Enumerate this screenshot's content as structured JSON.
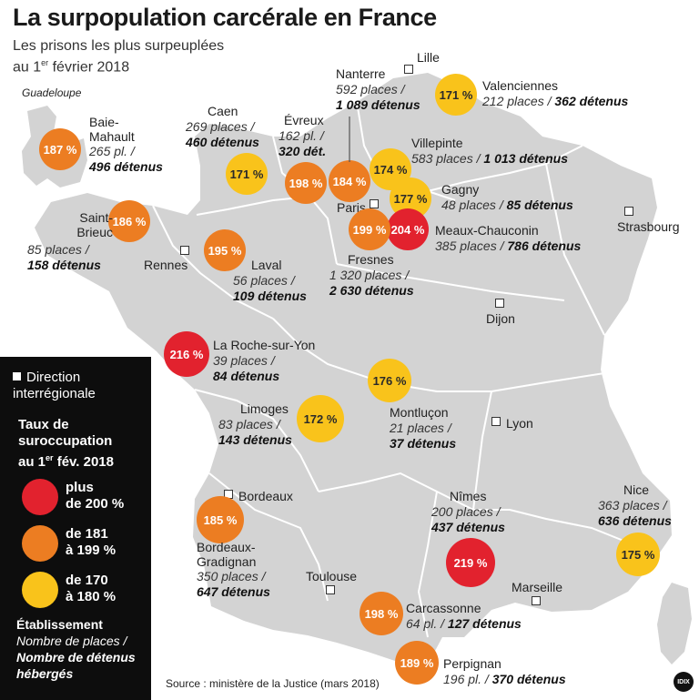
{
  "title": "La surpopulation carcérale en France",
  "subtitle_line1": "Les prisons les plus surpeuplées",
  "subtitle_line2_pre": "au 1",
  "subtitle_line2_sup": "er",
  "subtitle_line2_post": " février 2018",
  "guadeloupe_label": "Guadeloupe",
  "colors": {
    "red": "#e2222e",
    "orange": "#ec7d22",
    "yellow": "#f9c31b",
    "land": "#d3d3d3",
    "border": "#ffffff"
  },
  "directions": [
    "Lille",
    "Paris",
    "Strasbourg",
    "Rennes",
    "Dijon",
    "Lyon",
    "Bordeaux",
    "Toulouse",
    "Marseille"
  ],
  "prisons": [
    {
      "name": "Baie-\nMahault",
      "rate": "187 %",
      "level": "orange",
      "places": "265 pl. /",
      "detainees": "496 détenus"
    },
    {
      "name": "Caen",
      "rate": "171 %",
      "level": "yellow",
      "places": "269 places /",
      "detainees": "460 détenus"
    },
    {
      "name": "Évreux",
      "rate": "198 %",
      "level": "orange",
      "places": "162 pl. /",
      "detainees": "320 dét."
    },
    {
      "name": "Nanterre",
      "rate": "184 %",
      "level": "orange",
      "places": "592 places /",
      "detainees": "1 089 détenus"
    },
    {
      "name": "Valenciennes",
      "rate": "171 %",
      "level": "yellow",
      "places": "212 places /",
      "detainees": "362 détenus"
    },
    {
      "name": "Villepinte",
      "rate": "174 %",
      "level": "yellow",
      "places": "583 places /",
      "detainees": "1 013 détenus"
    },
    {
      "name": "Gagny",
      "rate": "177 %",
      "level": "yellow",
      "places": "48 places /",
      "detainees": "85 détenus"
    },
    {
      "name": "Meaux-Chauconin",
      "rate": "204 %",
      "level": "red",
      "places": "385 places /",
      "detainees": "786 détenus"
    },
    {
      "name": "Fresnes",
      "rate": "199 %",
      "level": "orange",
      "places": "1 320 places /",
      "detainees": "2 630 détenus"
    },
    {
      "name": "Saint-\nBrieuc",
      "rate": "186 %",
      "level": "orange",
      "places": "85 places /",
      "detainees": "158 détenus"
    },
    {
      "name": "Laval",
      "rate": "195 %",
      "level": "orange",
      "places": "56 places /",
      "detainees": "109 détenus"
    },
    {
      "name": "La Roche-sur-Yon",
      "rate": "216 %",
      "level": "red",
      "places": "39 places /",
      "detainees": "84 détenus"
    },
    {
      "name": "Montluçon",
      "rate": "176 %",
      "level": "yellow",
      "places": "21 places /",
      "detainees": "37 détenus"
    },
    {
      "name": "Limoges",
      "rate": "172 %",
      "level": "yellow",
      "places": "83 places /",
      "detainees": "143 détenus"
    },
    {
      "name": "Bordeaux-\nGradignan",
      "rate": "185 %",
      "level": "orange",
      "places": "350 places /",
      "detainees": "647 détenus"
    },
    {
      "name": "Nîmes",
      "rate": "219 %",
      "level": "red",
      "places": "200 places /",
      "detainees": "437 détenus"
    },
    {
      "name": "Nice",
      "rate": "175 %",
      "level": "yellow",
      "places": "363 places /",
      "detainees": "636 détenus"
    },
    {
      "name": "Carcassonne",
      "rate": "198 %",
      "level": "orange",
      "places": "64 pl. /",
      "detainees": "127 détenus"
    },
    {
      "name": "Perpignan",
      "rate": "189 %",
      "level": "orange",
      "places": "196 pl. /",
      "detainees": "370 détenus"
    }
  ],
  "legend": {
    "direction": "Direction\ninterrégionale",
    "taux_line1": "Taux de",
    "taux_line2": "suroccupation",
    "taux_line3_pre": "au 1",
    "taux_line3_sup": "er",
    "taux_line3_post": " fév. 2018",
    "ranges": [
      {
        "level": "red",
        "label": "plus\nde 200 %"
      },
      {
        "level": "orange",
        "label": "de 181\nà 199 %"
      },
      {
        "level": "yellow",
        "label": "de 170\nà 180 %"
      }
    ],
    "etab": "Établissement",
    "nb_places": "Nombre de places /",
    "nb_detenus_1": "Nombre de détenus",
    "nb_detenus_2": "hébergés"
  },
  "source": "Source : ministère de la Justice (mars 2018)",
  "logo_text": "IDIX"
}
